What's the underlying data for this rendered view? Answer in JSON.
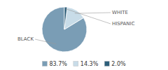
{
  "chart_data": {
    "type": "pie",
    "categories": [
      "BLACK",
      "WHITE",
      "HISPANIC"
    ],
    "values": [
      83.7,
      14.3,
      2.0
    ],
    "value_labels": [
      "83.7%",
      "14.3%",
      "2.0%"
    ],
    "colors": [
      "#7a9db5",
      "#c8dce8",
      "#2e5f7a"
    ],
    "legend": "bottom"
  }
}
